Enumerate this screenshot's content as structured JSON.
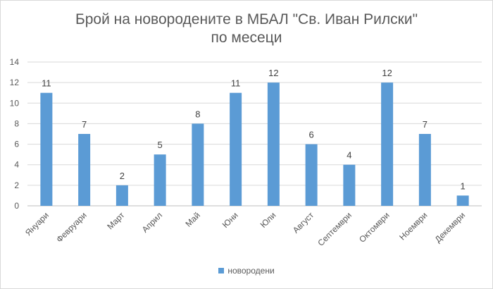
{
  "chart_data": {
    "type": "bar",
    "title": "Брой на новородените в МБАЛ \"Св. Иван Рилски\"",
    "subtitle": "по месеци",
    "categories": [
      "Януари",
      "Февруари",
      "Март",
      "Април",
      "Май",
      "Юни",
      "Юли",
      "Август",
      "Септември",
      "Октомври",
      "Ноември",
      "Декември"
    ],
    "series": [
      {
        "name": "новородени",
        "values": [
          11,
          7,
          2,
          5,
          8,
          11,
          12,
          6,
          4,
          12,
          7,
          1
        ],
        "color": "#5b9bd5"
      }
    ],
    "xlabel": "",
    "ylabel": "",
    "ylim": [
      0,
      14
    ],
    "yticks": [
      0,
      2,
      4,
      6,
      8,
      10,
      12,
      14
    ],
    "grid": true,
    "data_labels": true,
    "legend_position": "bottom"
  }
}
